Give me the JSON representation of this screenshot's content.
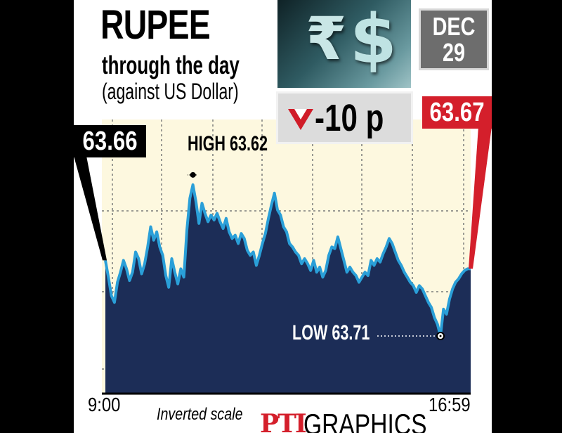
{
  "header": {
    "title": "RUPEE",
    "subtitle": "through the day",
    "subtitle2": "(against US Dollar)"
  },
  "date": {
    "month": "DEC",
    "day": "29"
  },
  "change": {
    "text": "-10 p",
    "direction": "down",
    "color": "#d01c28"
  },
  "photo": {
    "symbols": [
      "₹",
      "$"
    ]
  },
  "colors": {
    "area": "#1c2d57",
    "line": "#2a9fd8",
    "background": "#fdf8df",
    "open": "#000000",
    "close": "#d41f2b"
  },
  "footer": {
    "note": "Inverted scale",
    "brand_mark": "PTI",
    "brand_text": "GRAPHICS"
  },
  "chart_data": {
    "type": "area",
    "inverted_y": true,
    "ylim": [
      63.715,
      63.6
    ],
    "x_start_label": "9:00",
    "x_end_label": "16:59",
    "open": {
      "label": "63.66",
      "value": 63.66
    },
    "close": {
      "label": "63.67",
      "value": 63.67
    },
    "high": {
      "label": "HIGH 63.62",
      "value": 63.62
    },
    "low": {
      "label": "LOW 63.71",
      "value": 63.71
    },
    "grid": true,
    "values": [
      63.665,
      63.675,
      63.686,
      63.69,
      63.678,
      63.672,
      63.665,
      63.67,
      63.677,
      63.672,
      63.66,
      63.664,
      63.673,
      63.667,
      63.657,
      63.645,
      63.653,
      63.648,
      63.657,
      63.662,
      63.674,
      63.681,
      63.664,
      63.672,
      63.679,
      63.67,
      63.675,
      63.647,
      63.628,
      63.62,
      63.63,
      63.643,
      63.631,
      63.637,
      63.642,
      63.638,
      63.641,
      63.637,
      63.642,
      63.646,
      63.64,
      63.648,
      63.652,
      63.65,
      63.655,
      63.649,
      63.652,
      63.659,
      63.662,
      63.66,
      63.668,
      63.662,
      63.655,
      63.649,
      63.64,
      63.632,
      63.625,
      63.635,
      63.638,
      63.645,
      63.648,
      63.655,
      63.657,
      63.66,
      63.662,
      63.667,
      63.664,
      63.667,
      63.671,
      63.665,
      63.672,
      63.669,
      63.675,
      63.671,
      63.662,
      63.657,
      63.658,
      63.651,
      63.658,
      63.665,
      63.672,
      63.669,
      63.672,
      63.674,
      63.678,
      63.675,
      63.672,
      63.674,
      63.665,
      63.668,
      63.664,
      63.666,
      63.661,
      63.657,
      63.652,
      63.655,
      63.66,
      63.665,
      63.668,
      63.672,
      63.675,
      63.678,
      63.68,
      63.684,
      63.68,
      63.682,
      63.686,
      63.69,
      63.693,
      63.699,
      63.703,
      63.71,
      63.694,
      63.697,
      63.688,
      63.682,
      63.678,
      63.676,
      63.673,
      63.671,
      63.67,
      63.67
    ]
  }
}
